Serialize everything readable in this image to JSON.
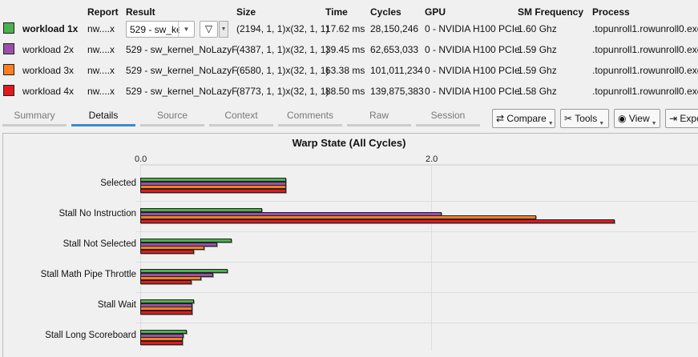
{
  "header": {
    "report": "Report",
    "result": "Result",
    "size": "Size",
    "time": "Time",
    "cycles": "Cycles",
    "gpu": "GPU",
    "sm_frequency": "SM Frequency",
    "process": "Process"
  },
  "rows": [
    {
      "name": "workload 1x",
      "color": "#4caf50",
      "report": "nw....x",
      "result": "529 - sw_kernel_NoLazyF",
      "result_display": "529 - sw_ker",
      "size": "(2194, 1, 1)x(32, 1, 1)",
      "time": "17.62 ms",
      "cycles": "28,150,246",
      "gpu": "0 - NVIDIA H100 PCIe",
      "sm_frequency": "1.60 Ghz",
      "process": ".topunroll1.rowunroll0.exe"
    },
    {
      "name": "workload 2x",
      "color": "#9b4fa8",
      "report": "nw....x",
      "result": "529 - sw_kernel_NoLazyF",
      "size": "(4387, 1, 1)x(32, 1, 1)",
      "time": "39.45 ms",
      "cycles": "62,653,033",
      "gpu": "0 - NVIDIA H100 PCIe",
      "sm_frequency": "1.59 Ghz",
      "process": ".topunroll1.rowunroll0.exe"
    },
    {
      "name": "workload 3x",
      "color": "#ff7f1e",
      "report": "nw....x",
      "result": "529 - sw_kernel_NoLazyF",
      "size": "(6580, 1, 1)x(32, 1, 1)",
      "time": "63.38 ms",
      "cycles": "101,011,234",
      "gpu": "0 - NVIDIA H100 PCIe",
      "sm_frequency": "1.59 Ghz",
      "process": ".topunroll1.rowunroll0.exe"
    },
    {
      "name": "workload 4x",
      "color": "#e31a1c",
      "report": "nw....x",
      "result": "529 - sw_kernel_NoLazyF",
      "size": "(8773, 1, 1)x(32, 1, 1)",
      "time": "88.50 ms",
      "cycles": "139,875,383",
      "gpu": "0 - NVIDIA H100 PCIe",
      "sm_frequency": "1.58 Ghz",
      "process": ".topunroll1.rowunroll0.exe"
    }
  ],
  "tabs": [
    "Summary",
    "Details",
    "Source",
    "Context",
    "Comments",
    "Raw",
    "Session"
  ],
  "active_tab": "Details",
  "toolbar": {
    "compare": "Compare",
    "tools": "Tools",
    "view": "View",
    "export": "Expo"
  },
  "chart_data": {
    "type": "bar",
    "orientation": "horizontal",
    "title": "Warp State (All Cycles)",
    "categories": [
      "Selected",
      "Stall No Instruction",
      "Stall Not Selected",
      "Stall Math Pipe Throttle",
      "Stall Wait",
      "Stall Long Scoreboard"
    ],
    "series": [
      {
        "name": "workload 1x",
        "color": "#4caf50",
        "values": [
          1.0,
          0.84,
          0.63,
          0.6,
          0.37,
          0.32
        ]
      },
      {
        "name": "workload 2x",
        "color": "#9b4fa8",
        "values": [
          1.0,
          2.07,
          0.53,
          0.5,
          0.36,
          0.3
        ]
      },
      {
        "name": "workload 3x",
        "color": "#ff7f1e",
        "values": [
          1.0,
          2.72,
          0.44,
          0.42,
          0.36,
          0.29
        ]
      },
      {
        "name": "workload 4x",
        "color": "#e31a1c",
        "values": [
          1.0,
          3.26,
          0.37,
          0.35,
          0.36,
          0.29
        ]
      }
    ],
    "x_ticks": [
      "0.0",
      "2.0"
    ],
    "grid": true
  }
}
